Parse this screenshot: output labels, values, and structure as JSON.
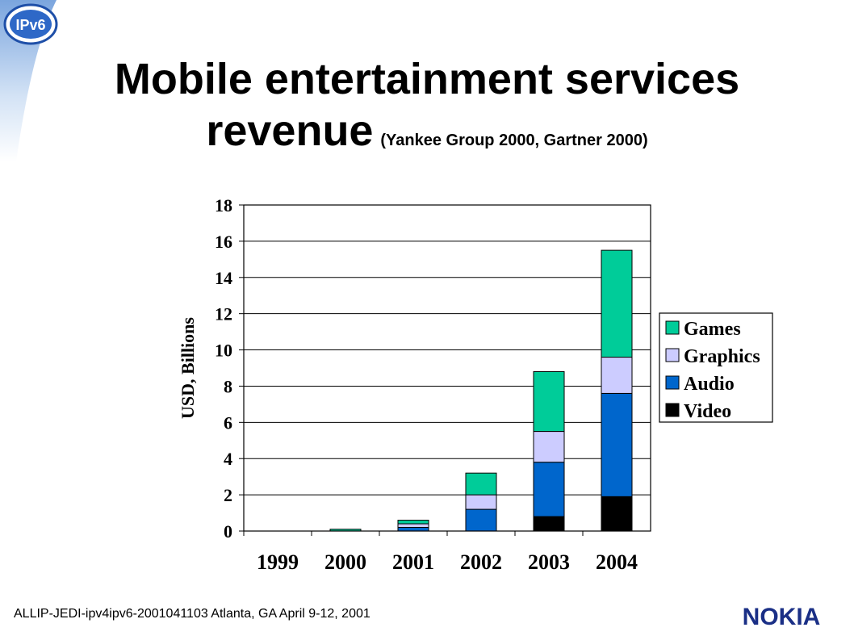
{
  "slide": {
    "title_line1": "Mobile entertainment services",
    "title_line2": "revenue",
    "title_source": "(Yankee Group 2000, Gartner 2000)",
    "footer": "ALLIP-JEDI-ipv4ipv6-2001041103 Atlanta, GA April 9-12, 2001",
    "logo_text": "IPv6",
    "brand": "NOKIA",
    "brand_color": "#1a2f86"
  },
  "chart_data": {
    "type": "bar",
    "stacked": true,
    "categories": [
      "1999",
      "2000",
      "2001",
      "2002",
      "2003",
      "2004"
    ],
    "series": [
      {
        "name": "Video",
        "color": "#000000",
        "values": [
          0,
          0,
          0,
          0,
          0.8,
          1.9
        ]
      },
      {
        "name": "Audio",
        "color": "#0066cc",
        "values": [
          0,
          0,
          0.2,
          1.2,
          3.0,
          5.7
        ]
      },
      {
        "name": "Graphics",
        "color": "#ccccff",
        "values": [
          0,
          0,
          0.2,
          0.8,
          1.7,
          2.0
        ]
      },
      {
        "name": "Games",
        "color": "#00cc99",
        "values": [
          0,
          0.1,
          0.2,
          1.2,
          3.3,
          5.9
        ]
      }
    ],
    "legend_order": [
      "Games",
      "Graphics",
      "Audio",
      "Video"
    ],
    "ylabel": "USD, Billions",
    "xlabel": "",
    "ylim": [
      0,
      18
    ],
    "yticks": [
      "0",
      "2",
      "4",
      "6",
      "8",
      "10",
      "12",
      "14",
      "16",
      "18"
    ],
    "grid": true,
    "legend_position": "right"
  }
}
